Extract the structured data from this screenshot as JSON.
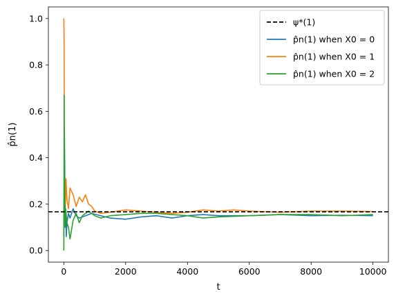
{
  "chart_data": {
    "type": "line",
    "xlabel": "t",
    "ylabel": "p̂n(1)",
    "xlim": [
      -500,
      10500
    ],
    "ylim": [
      -0.05,
      1.05
    ],
    "xticks": [
      0,
      2000,
      4000,
      6000,
      8000,
      10000
    ],
    "xtick_labels": [
      "0",
      "2000",
      "4000",
      "6000",
      "8000",
      "10000"
    ],
    "yticks": [
      0.0,
      0.2,
      0.4,
      0.6,
      0.8,
      1.0
    ],
    "ytick_labels": [
      "0.0",
      "0.2",
      "0.4",
      "0.6",
      "0.8",
      "1.0"
    ],
    "grid": false,
    "legend_position": "top-right",
    "reference_line": {
      "name": "ψ*(1)",
      "y": 0.1667,
      "color": "#000000",
      "style": "dashed"
    },
    "series": [
      {
        "name": "p̂n(1) when X0 = 0",
        "color": "#1f77b4",
        "x": [
          0,
          20,
          40,
          60,
          80,
          100,
          150,
          200,
          300,
          400,
          500,
          700,
          900,
          1200,
          1500,
          2000,
          2500,
          3000,
          3500,
          4000,
          4500,
          5000,
          6000,
          7000,
          8000,
          9000,
          10000
        ],
        "y": [
          0.06,
          0.5,
          0.2,
          0.15,
          0.06,
          0.12,
          0.16,
          0.14,
          0.18,
          0.15,
          0.14,
          0.15,
          0.16,
          0.15,
          0.14,
          0.135,
          0.145,
          0.15,
          0.14,
          0.15,
          0.155,
          0.15,
          0.15,
          0.155,
          0.15,
          0.152,
          0.15
        ]
      },
      {
        "name": "p̂n(1) when X0 = 1",
        "color": "#ff7f0e",
        "x": [
          0,
          10,
          20,
          30,
          50,
          70,
          100,
          150,
          200,
          300,
          400,
          500,
          600,
          700,
          800,
          900,
          1000,
          1200,
          1500,
          2000,
          2500,
          3000,
          3500,
          4000,
          4500,
          5000,
          5500,
          6000,
          7000,
          8000,
          9000,
          10000
        ],
        "y": [
          1.0,
          0.89,
          0.3,
          0.25,
          0.2,
          0.31,
          0.22,
          0.18,
          0.27,
          0.24,
          0.19,
          0.23,
          0.21,
          0.24,
          0.2,
          0.19,
          0.17,
          0.16,
          0.165,
          0.175,
          0.17,
          0.165,
          0.16,
          0.165,
          0.175,
          0.17,
          0.175,
          0.17,
          0.165,
          0.17,
          0.17,
          0.168
        ]
      },
      {
        "name": "p̂n(1) when X0 = 2",
        "color": "#2ca02c",
        "x": [
          0,
          10,
          20,
          40,
          60,
          80,
          100,
          150,
          200,
          250,
          300,
          400,
          500,
          600,
          800,
          1000,
          1200,
          1500,
          2000,
          2500,
          3000,
          3500,
          4000,
          4500,
          5000,
          6000,
          7000,
          8000,
          9000,
          10000
        ],
        "y": [
          0.0,
          0.67,
          0.35,
          0.1,
          0.18,
          0.15,
          0.12,
          0.1,
          0.05,
          0.09,
          0.13,
          0.16,
          0.12,
          0.15,
          0.17,
          0.15,
          0.14,
          0.15,
          0.155,
          0.16,
          0.16,
          0.155,
          0.15,
          0.14,
          0.145,
          0.15,
          0.155,
          0.155,
          0.15,
          0.155
        ]
      }
    ]
  }
}
